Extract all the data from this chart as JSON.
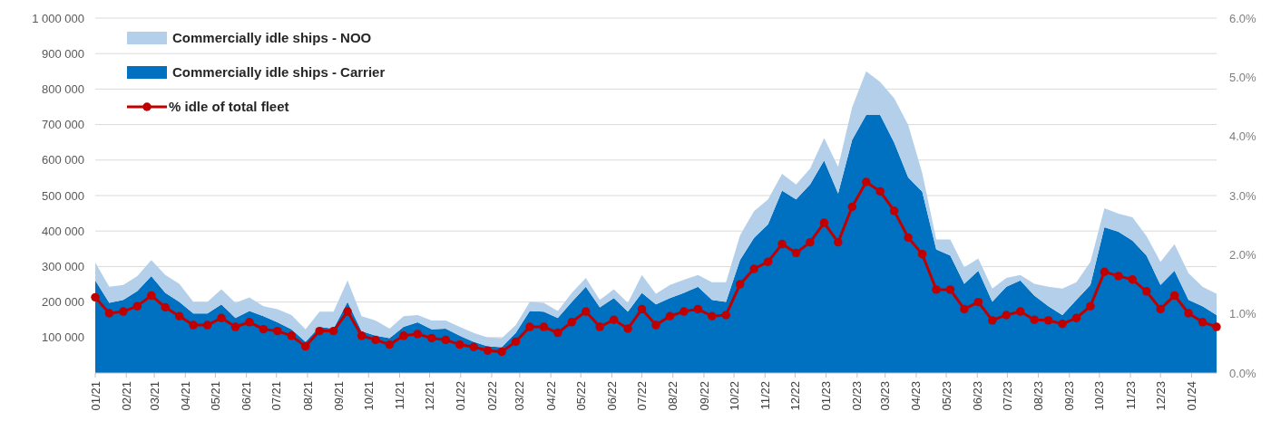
{
  "chart_data": {
    "type": "area",
    "stacked": true,
    "grid": "y",
    "legend": "top left",
    "line_style": "solid",
    "x": [
      "2021-01-01",
      "2021-01-15",
      "2021-01-29",
      "2021-02-12",
      "2021-02-26",
      "2021-03-12",
      "2021-03-26",
      "2021-04-09",
      "2021-04-23",
      "2021-05-07",
      "2021-05-21",
      "2021-06-04",
      "2021-06-18",
      "2021-07-02",
      "2021-07-16",
      "2021-07-30",
      "2021-08-13",
      "2021-08-27",
      "2021-09-10",
      "2021-09-24",
      "2021-10-08",
      "2021-10-22",
      "2021-11-05",
      "2021-11-19",
      "2021-12-03",
      "2021-12-17",
      "2021-12-31",
      "2022-01-14",
      "2022-01-28",
      "2022-02-11",
      "2022-02-25",
      "2022-03-11",
      "2022-03-25",
      "2022-04-08",
      "2022-04-22",
      "2022-05-06",
      "2022-05-20",
      "2022-06-03",
      "2022-06-17",
      "2022-07-01",
      "2022-07-15",
      "2022-07-29",
      "2022-08-12",
      "2022-08-26",
      "2022-09-09",
      "2022-09-23",
      "2022-10-07",
      "2022-10-21",
      "2022-11-04",
      "2022-11-18",
      "2022-12-02",
      "2022-12-16",
      "2022-12-30",
      "2023-01-13",
      "2023-01-27",
      "2023-02-10",
      "2023-02-24",
      "2023-03-10",
      "2023-03-24",
      "2023-04-07",
      "2023-04-21",
      "2023-05-05",
      "2023-05-19",
      "2023-06-02",
      "2023-06-16",
      "2023-06-30",
      "2023-07-14",
      "2023-07-28",
      "2023-08-11",
      "2023-08-25",
      "2023-09-08",
      "2023-09-22",
      "2023-10-06",
      "2023-10-20",
      "2023-11-03",
      "2023-11-17",
      "2023-12-01",
      "2023-12-15",
      "2023-12-29",
      "2024-01-12",
      "2024-01-26"
    ],
    "series": [
      {
        "name": "Commercially idle ships - Carrier",
        "color": "#0070c0",
        "values": [
          261000,
          198000,
          206000,
          231000,
          273000,
          226000,
          200000,
          168000,
          168000,
          193000,
          155000,
          175000,
          160000,
          143000,
          123000,
          88000,
          130000,
          125000,
          200000,
          118000,
          105000,
          98000,
          130000,
          143000,
          123000,
          125000,
          105000,
          88000,
          75000,
          73000,
          113000,
          175000,
          173000,
          155000,
          200000,
          243000,
          185000,
          211000,
          173000,
          226000,
          193000,
          211000,
          226000,
          243000,
          206000,
          200000,
          318000,
          381000,
          419000,
          514000,
          489000,
          531000,
          599000,
          506000,
          657000,
          727000,
          727000,
          649000,
          551000,
          511000,
          348000,
          331000,
          251000,
          288000,
          201000,
          243000,
          261000,
          218000,
          188000,
          163000,
          206000,
          248000,
          411000,
          398000,
          373000,
          331000,
          248000,
          288000,
          206000,
          188000,
          163000
        ]
      },
      {
        "name": "Commercially idle ships - NOO",
        "color": "#b4cfe9",
        "values": [
          50000,
          45000,
          42000,
          42000,
          45000,
          50000,
          51000,
          32000,
          32000,
          43000,
          43000,
          38000,
          28000,
          37000,
          40000,
          35000,
          43000,
          48000,
          61000,
          42000,
          43000,
          27000,
          30000,
          20000,
          25000,
          23000,
          25000,
          25000,
          25000,
          25000,
          22000,
          25000,
          25000,
          20000,
          26000,
          25000,
          21000,
          25000,
          25000,
          50000,
          30000,
          37000,
          37000,
          33000,
          50000,
          56000,
          70000,
          75000,
          70000,
          47000,
          42000,
          45000,
          63000,
          75000,
          92000,
          123000,
          93000,
          125000,
          148000,
          53000,
          28000,
          45000,
          47000,
          35000,
          37000,
          25000,
          15000,
          33000,
          55000,
          75000,
          50000,
          65000,
          53000,
          51000,
          66000,
          55000,
          65000,
          75000,
          75000,
          55000,
          60000
        ]
      },
      {
        "name": "% idle of total fleet",
        "type": "line",
        "marker": "circle",
        "axis": "y2",
        "color": "#c00000",
        "values": [
          1.28,
          1.01,
          1.04,
          1.13,
          1.31,
          1.11,
          0.96,
          0.81,
          0.81,
          0.93,
          0.78,
          0.86,
          0.74,
          0.71,
          0.63,
          0.45,
          0.71,
          0.71,
          1.04,
          0.63,
          0.56,
          0.48,
          0.63,
          0.66,
          0.59,
          0.56,
          0.48,
          0.44,
          0.38,
          0.36,
          0.53,
          0.78,
          0.78,
          0.68,
          0.86,
          1.04,
          0.78,
          0.9,
          0.75,
          1.08,
          0.81,
          0.96,
          1.04,
          1.08,
          0.96,
          0.98,
          1.5,
          1.76,
          1.88,
          2.18,
          2.03,
          2.21,
          2.54,
          2.21,
          2.81,
          3.23,
          3.07,
          2.74,
          2.29,
          2.01,
          1.41,
          1.41,
          1.08,
          1.2,
          0.89,
          0.98,
          1.04,
          0.9,
          0.89,
          0.83,
          0.93,
          1.13,
          1.71,
          1.64,
          1.58,
          1.38,
          1.08,
          1.31,
          1.01,
          0.86,
          0.78
        ]
      }
    ],
    "xlim": [
      "2021-01-01",
      "2024-01-26"
    ],
    "xticks": [
      {
        "value": "2021-01-01",
        "label": "01/21"
      },
      {
        "value": "2021-02-01",
        "label": "02/21"
      },
      {
        "value": "2021-03-01",
        "label": "03/21"
      },
      {
        "value": "2021-04-01",
        "label": "04/21"
      },
      {
        "value": "2021-05-01",
        "label": "05/21"
      },
      {
        "value": "2021-06-01",
        "label": "06/21"
      },
      {
        "value": "2021-07-01",
        "label": "07/21"
      },
      {
        "value": "2021-08-01",
        "label": "08/21"
      },
      {
        "value": "2021-09-01",
        "label": "09/21"
      },
      {
        "value": "2021-10-01",
        "label": "10/21"
      },
      {
        "value": "2021-11-01",
        "label": "11/21"
      },
      {
        "value": "2021-12-01",
        "label": "12/21"
      },
      {
        "value": "2022-01-01",
        "label": "01/22"
      },
      {
        "value": "2022-02-01",
        "label": "02/22"
      },
      {
        "value": "2022-03-01",
        "label": "03/22"
      },
      {
        "value": "2022-04-01",
        "label": "04/22"
      },
      {
        "value": "2022-05-01",
        "label": "05/22"
      },
      {
        "value": "2022-06-01",
        "label": "06/22"
      },
      {
        "value": "2022-07-01",
        "label": "07/22"
      },
      {
        "value": "2022-08-01",
        "label": "08/22"
      },
      {
        "value": "2022-09-01",
        "label": "09/22"
      },
      {
        "value": "2022-10-01",
        "label": "10/22"
      },
      {
        "value": "2022-11-01",
        "label": "11/22"
      },
      {
        "value": "2022-12-01",
        "label": "12/22"
      },
      {
        "value": "2023-01-01",
        "label": "01/23"
      },
      {
        "value": "2023-02-01",
        "label": "02/23"
      },
      {
        "value": "2023-03-01",
        "label": "03/23"
      },
      {
        "value": "2023-04-01",
        "label": "04/23"
      },
      {
        "value": "2023-05-01",
        "label": "05/23"
      },
      {
        "value": "2023-06-01",
        "label": "06/23"
      },
      {
        "value": "2023-07-01",
        "label": "07/23"
      },
      {
        "value": "2023-08-01",
        "label": "08/23"
      },
      {
        "value": "2023-09-01",
        "label": "09/23"
      },
      {
        "value": "2023-10-01",
        "label": "10/23"
      },
      {
        "value": "2023-11-01",
        "label": "11/23"
      },
      {
        "value": "2023-12-01",
        "label": "12/23"
      },
      {
        "value": "2024-01-01",
        "label": "01/24"
      }
    ],
    "ylim": [
      0,
      1000000
    ],
    "yticks": [
      {
        "value": 100000,
        "label": "100 000"
      },
      {
        "value": 200000,
        "label": "200 000"
      },
      {
        "value": 300000,
        "label": "300 000"
      },
      {
        "value": 400000,
        "label": "400 000"
      },
      {
        "value": 500000,
        "label": "500 000"
      },
      {
        "value": 600000,
        "label": "600 000"
      },
      {
        "value": 700000,
        "label": "700 000"
      },
      {
        "value": 800000,
        "label": "800 000"
      },
      {
        "value": 900000,
        "label": "900 000"
      },
      {
        "value": 1000000,
        "label": "1 000 000"
      }
    ],
    "y2lim": [
      0,
      6
    ],
    "y2ticks": [
      {
        "value": 0,
        "label": "0.0%"
      },
      {
        "value": 1,
        "label": "1.0%"
      },
      {
        "value": 2,
        "label": "2.0%"
      },
      {
        "value": 3,
        "label": "3.0%"
      },
      {
        "value": 4,
        "label": "4.0%"
      },
      {
        "value": 5,
        "label": "5.0%"
      },
      {
        "value": 6,
        "label": "6.0%"
      }
    ]
  }
}
